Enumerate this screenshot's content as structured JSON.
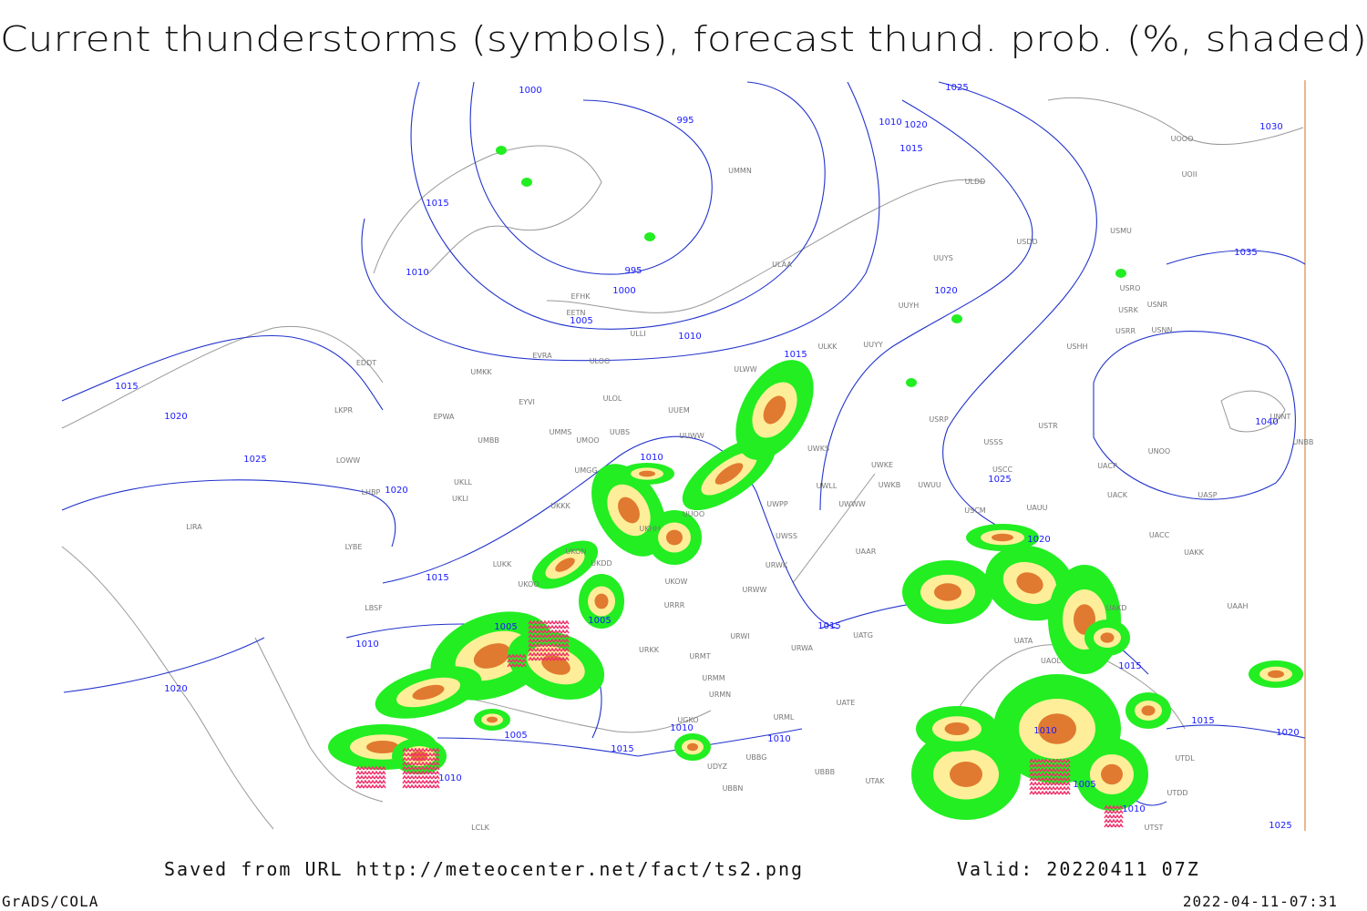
{
  "title": "Current thunderstorms (symbols), forecast thund. prob. (%, shaded)",
  "footer": {
    "saved_from": "Saved from URL http://meteocenter.net/fact/ts2.png",
    "valid": "Valid: 20220411 07Z",
    "credit": "GrADS/COLA",
    "timestamp": "2022-04-11-07:31"
  },
  "isobar_labels": [
    "1000",
    "995",
    "1025",
    "1010",
    "1020",
    "1015",
    "1030",
    "1015",
    "1010",
    "995",
    "1000",
    "1005",
    "1010",
    "1020",
    "1035",
    "1015",
    "1015",
    "1020",
    "1025",
    "1040",
    "1010",
    "1025",
    "1020",
    "1015",
    "1020",
    "1005",
    "1005",
    "1015",
    "1010",
    "1015",
    "1020",
    "1005",
    "1010",
    "1010",
    "1010",
    "1015",
    "1015",
    "1020",
    "1010",
    "1005",
    "1010",
    "1025"
  ],
  "stations": [
    "UMMN",
    "ULDD",
    "UOII",
    "UOOO",
    "USDD",
    "USMU",
    "ULAA",
    "UUYS",
    "USRO",
    "USRK",
    "USNR",
    "USRR",
    "USNN",
    "UUYH",
    "EFHK",
    "EETN",
    "ULLI",
    "UUYY",
    "ULKK",
    "USHH",
    "EVRA",
    "ULOO",
    "EDDT",
    "UMKK",
    "ULWW",
    "EYVI",
    "ULOL",
    "UUEM",
    "EPWA",
    "LKPR",
    "USRP",
    "USTR",
    "UNNT",
    "UMMS",
    "UMOO",
    "UUBS",
    "UUWW",
    "UMBB",
    "USSS",
    "UWKS",
    "UNOO",
    "UNBB",
    "LOWW",
    "UWKE",
    "UACP",
    "UMGG",
    "USCC",
    "UKLL",
    "UWLL",
    "UWKB",
    "UWUU",
    "LHBP",
    "UKLI",
    "UACK",
    "UASP",
    "UKKK",
    "UWPP",
    "UWWW",
    "USCM",
    "UAUU",
    "LIRA",
    "UUOO",
    "UKHH",
    "UACC",
    "UWSS",
    "LYBE",
    "UKON",
    "UAAR",
    "UAKK",
    "LUKK",
    "UKDD",
    "URWK",
    "UKOO",
    "UKOW",
    "URWW",
    "UAKD",
    "UAAH",
    "LBSF",
    "URRR",
    "UATG",
    "URKK",
    "URWI",
    "URWA",
    "UATA",
    "URMT",
    "UAOL",
    "URMM",
    "URMN",
    "UATE",
    "UGKO",
    "URML",
    "UTDL",
    "UDYZ",
    "UBBG",
    "UBBB",
    "UTAK",
    "UBBN",
    "UTST",
    "LCLK",
    "UTDD"
  ]
}
